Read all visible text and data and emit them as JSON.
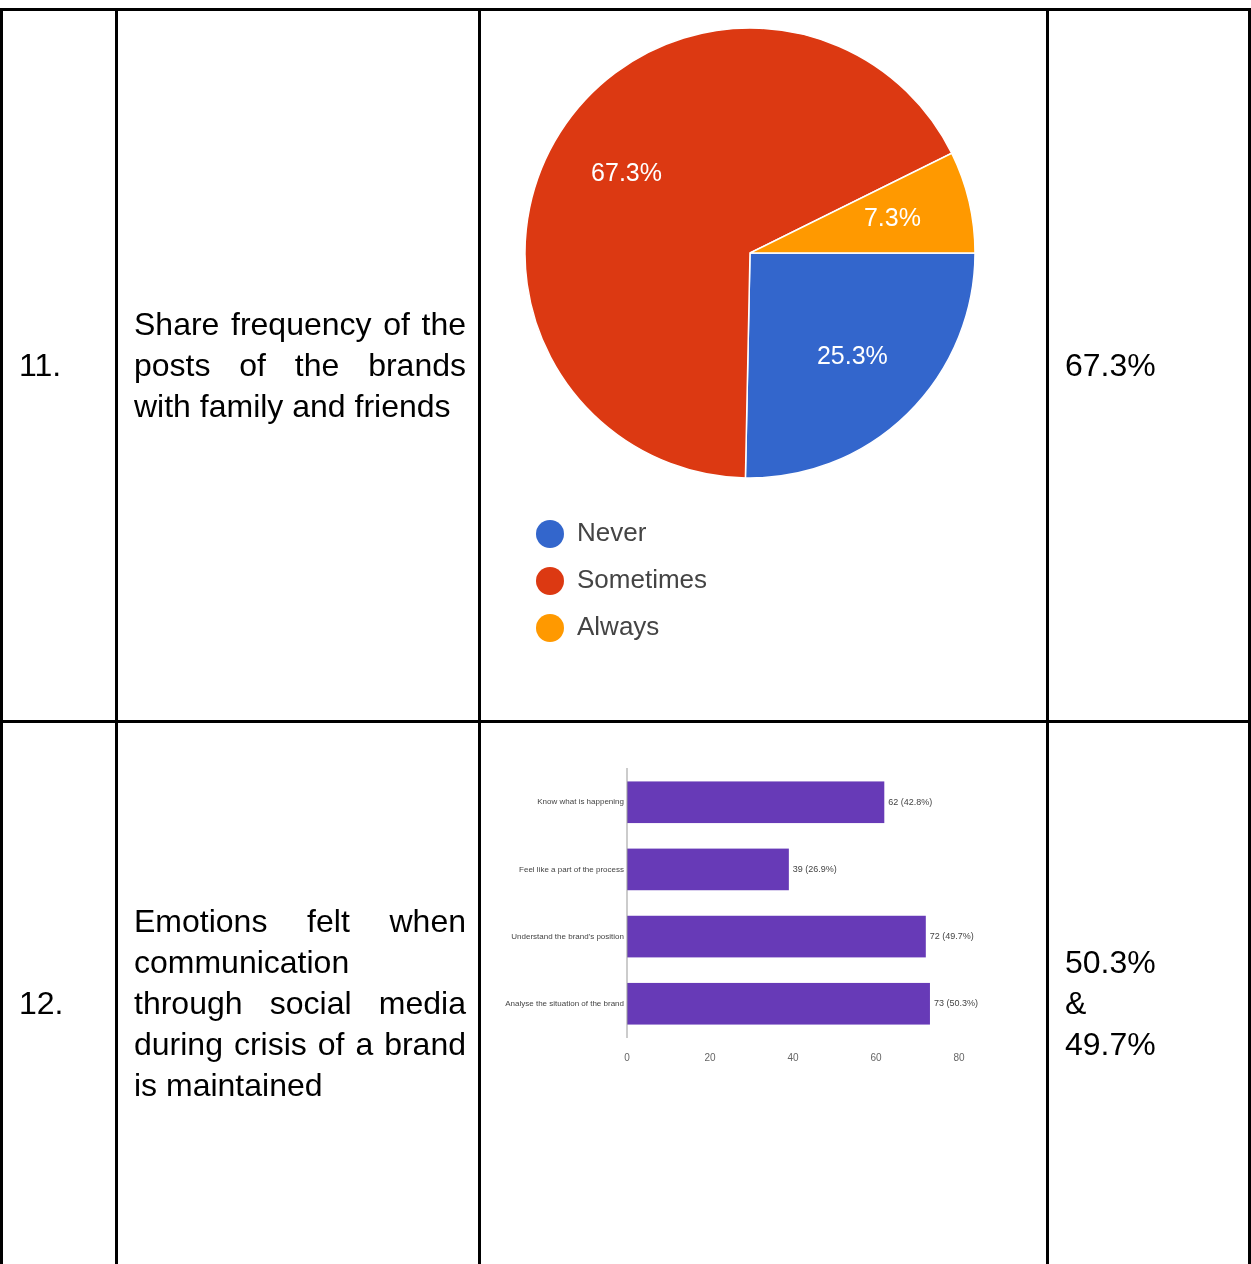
{
  "chart_data": [
    {
      "type": "other",
      "annotations": [
        "11."
      ]
    },
    {
      "type": "other",
      "annotations": [
        "Share frequency of the posts of the brands with family and friends"
      ]
    },
    {
      "type": "pie",
      "categories": [
        "Never",
        "Sometimes",
        "Always"
      ],
      "values": [
        25.3,
        67.3,
        7.3
      ],
      "colors": [
        "#3366cc",
        "#dc3912",
        "#ff9900"
      ],
      "value_labels": [
        "25.3%",
        "67.3%",
        "7.3%"
      ],
      "legend": "bottom"
    },
    {
      "type": "other",
      "annotations": [
        "67.3%"
      ]
    },
    {
      "type": "other",
      "annotations": [
        "12."
      ]
    },
    {
      "type": "other",
      "annotations": [
        "Emotions felt when communication through social media during crisis of a brand is maintained"
      ]
    },
    {
      "type": "bar",
      "orientation": "horizontal",
      "categories": [
        "Know what is happening",
        "Feel like a part of the process",
        "Understand the brand's position",
        "Analyse the situation of the brand"
      ],
      "values": [
        62,
        39,
        72,
        73
      ],
      "value_labels": [
        "62 (42.8%)",
        "39 (26.9%)",
        "72 (49.7%)",
        "73 (50.3%)"
      ],
      "color": "#673ab7",
      "xlim": [
        0,
        80
      ],
      "xticks": [
        0,
        20,
        40,
        60,
        80
      ]
    },
    {
      "type": "other",
      "annotations": [
        "50.3%",
        "&",
        "49.7%"
      ]
    }
  ]
}
